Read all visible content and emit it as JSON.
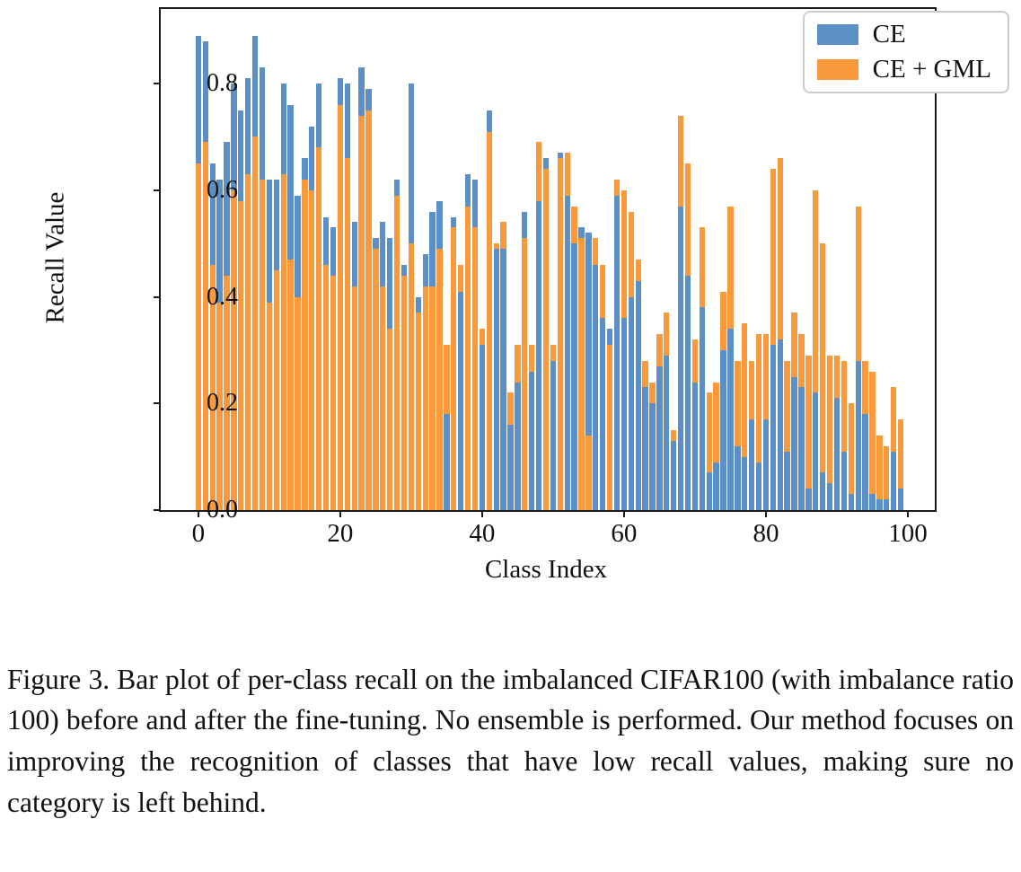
{
  "figure": {
    "caption": "Figure 3. Bar plot of per-class recall on the imbalanced CIFAR100 (with imbalance ratio 100) before and after the fine-tuning. No ensemble is performed. Our method focuses on improving the recognition of classes that have low recall values, making sure no category is left behind."
  },
  "colors": {
    "ce_blue": "#5B8FC5",
    "gml_orange": "#F8993B",
    "axis": "#1a1a1a",
    "legend_border": "#cccccc",
    "background": "#ffffff"
  },
  "chart_data": {
    "type": "bar",
    "title": "",
    "xlabel": "Class Index",
    "ylabel": "Recall Value",
    "grid": false,
    "legend_position": "upper right",
    "bar_style": "overlaid (taller series behind, shorter series in front, same x position)",
    "xlim": [
      -5.3,
      103.8
    ],
    "ylim": [
      0,
      0.94
    ],
    "x_ticks": [
      {
        "value": 0,
        "label": "0"
      },
      {
        "value": 20,
        "label": "20"
      },
      {
        "value": 40,
        "label": "40"
      },
      {
        "value": 60,
        "label": "60"
      },
      {
        "value": 80,
        "label": "80"
      },
      {
        "value": 100,
        "label": "100"
      }
    ],
    "y_ticks": [
      {
        "value": 0.0,
        "label": "0.0"
      },
      {
        "value": 0.2,
        "label": "0.2"
      },
      {
        "value": 0.4,
        "label": "0.4"
      },
      {
        "value": 0.6,
        "label": "0.6"
      },
      {
        "value": 0.8,
        "label": "0.8"
      }
    ],
    "categories": [
      0,
      1,
      2,
      3,
      4,
      5,
      6,
      7,
      8,
      9,
      10,
      11,
      12,
      13,
      14,
      15,
      16,
      17,
      18,
      19,
      20,
      21,
      22,
      23,
      24,
      25,
      26,
      27,
      28,
      29,
      30,
      31,
      32,
      33,
      34,
      35,
      36,
      37,
      38,
      39,
      40,
      41,
      42,
      43,
      44,
      45,
      46,
      47,
      48,
      49,
      50,
      51,
      52,
      53,
      54,
      55,
      56,
      57,
      58,
      59,
      60,
      61,
      62,
      63,
      64,
      65,
      66,
      67,
      68,
      69,
      70,
      71,
      72,
      73,
      74,
      75,
      76,
      77,
      78,
      79,
      80,
      81,
      82,
      83,
      84,
      85,
      86,
      87,
      88,
      89,
      90,
      91,
      92,
      93,
      94,
      95,
      96,
      97,
      98,
      99
    ],
    "series": [
      {
        "name": "CE",
        "color": "#5B8FC5",
        "values": [
          0.89,
          0.88,
          0.65,
          0.62,
          0.69,
          0.8,
          0.75,
          0.81,
          0.89,
          0.83,
          0.62,
          0.62,
          0.8,
          0.76,
          0.59,
          0.66,
          0.72,
          0.8,
          0.55,
          0.53,
          0.81,
          0.8,
          0.54,
          0.83,
          0.79,
          0.51,
          0.54,
          0.51,
          0.62,
          0.46,
          0.8,
          0.4,
          0.48,
          0.56,
          0.58,
          0.18,
          0.55,
          0.41,
          0.63,
          0.62,
          0.31,
          0.75,
          0.49,
          0.49,
          0.16,
          0.24,
          0.56,
          0.26,
          0.58,
          0.66,
          0.28,
          0.67,
          0.59,
          0.5,
          0.53,
          0.52,
          0.46,
          0.36,
          0.34,
          0.59,
          0.36,
          0.4,
          0.43,
          0.23,
          0.2,
          0.27,
          0.29,
          0.13,
          0.57,
          0.44,
          0.24,
          0.38,
          0.07,
          0.09,
          0.3,
          0.34,
          0.12,
          0.1,
          0.17,
          0.09,
          0.17,
          0.31,
          0.32,
          0.11,
          0.25,
          0.23,
          0.04,
          0.22,
          0.07,
          0.05,
          0.21,
          0.11,
          0.03,
          0.28,
          0.18,
          0.03,
          0.02,
          0.02,
          0.11,
          0.04
        ]
      },
      {
        "name": "CE + GML",
        "color": "#F8993B",
        "values": [
          0.65,
          0.69,
          0.46,
          0.39,
          0.44,
          0.6,
          0.58,
          0.63,
          0.7,
          0.62,
          0.39,
          0.45,
          0.63,
          0.47,
          0.4,
          0.62,
          0.6,
          0.68,
          0.46,
          0.44,
          0.76,
          0.66,
          0.42,
          0.74,
          0.75,
          0.49,
          0.42,
          0.34,
          0.59,
          0.44,
          0.5,
          0.37,
          0.42,
          0.42,
          0.49,
          0.31,
          0.53,
          0.46,
          0.57,
          0.53,
          0.34,
          0.71,
          0.5,
          0.54,
          0.22,
          0.31,
          0.51,
          0.31,
          0.69,
          0.64,
          0.31,
          0.66,
          0.67,
          0.57,
          0.51,
          0.14,
          0.51,
          0.46,
          0.31,
          0.62,
          0.6,
          0.56,
          0.47,
          0.28,
          0.24,
          0.33,
          0.37,
          0.15,
          0.74,
          0.65,
          0.32,
          0.53,
          0.22,
          0.24,
          0.41,
          0.57,
          0.28,
          0.35,
          0.28,
          0.33,
          0.33,
          0.64,
          0.66,
          0.28,
          0.37,
          0.33,
          0.29,
          0.6,
          0.5,
          0.29,
          0.29,
          0.28,
          0.2,
          0.57,
          0.28,
          0.26,
          0.14,
          0.12,
          0.23,
          0.17
        ]
      }
    ]
  }
}
